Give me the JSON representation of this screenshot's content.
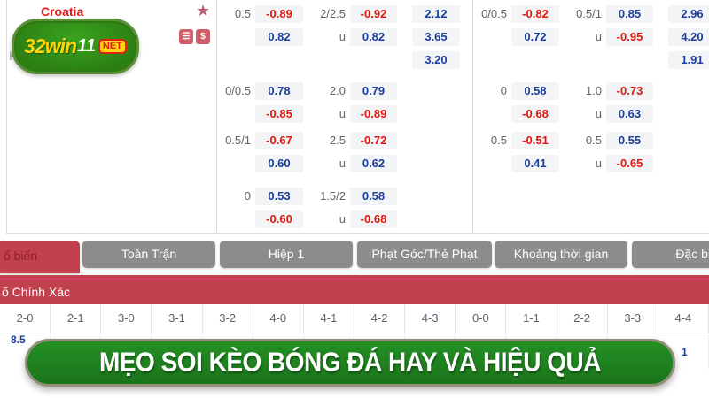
{
  "labels": {
    "u": "u"
  },
  "team_panel": {
    "name": "Croatia",
    "partial_text": "H",
    "logo": {
      "p1": "32win",
      "p2": "11",
      "badge": "NET"
    },
    "icons": {
      "stack": "☰",
      "dollar": "$"
    }
  },
  "odds": {
    "left": {
      "groups": [
        {
          "hdp": "0.5",
          "hdp_home": "-0.89",
          "hdp_away": "0.82",
          "ou": "2/2.5",
          "over": "-0.92",
          "under": "0.82",
          "x12": [
            "2.12",
            "3.65",
            "3.20"
          ]
        },
        {
          "hdp": "0/0.5",
          "hdp_home": "0.78",
          "hdp_away": "-0.85",
          "ou": "2.0",
          "over": "0.79",
          "under": "-0.89"
        },
        {
          "hdp": "0.5/1",
          "hdp_home": "-0.67",
          "hdp_away": "0.60",
          "ou": "2.5",
          "over": "-0.72",
          "under": "0.62"
        },
        {
          "hdp": "0",
          "hdp_home": "0.53",
          "hdp_away": "-0.60",
          "ou": "1.5/2",
          "over": "0.58",
          "under": "-0.68"
        }
      ]
    },
    "right": {
      "groups": [
        {
          "hdp": "0/0.5",
          "hdp_home": "-0.82",
          "hdp_away": "0.72",
          "ou": "0.5/1",
          "over": "0.85",
          "under": "-0.95",
          "x12": [
            "2.96",
            "4.20",
            "1.91"
          ]
        },
        {
          "hdp": "0",
          "hdp_home": "0.58",
          "hdp_away": "-0.68",
          "ou": "1.0",
          "over": "-0.73",
          "under": "0.63"
        },
        {
          "hdp": "0.5",
          "hdp_home": "-0.51",
          "hdp_away": "0.41",
          "ou": "0.5",
          "over": "0.55",
          "under": "-0.65"
        }
      ]
    }
  },
  "tabs": [
    {
      "label": "ổ biến",
      "active": true
    },
    {
      "label": "Toàn Trận"
    },
    {
      "label": "Hiệp 1"
    },
    {
      "label": "Phạt Góc/Thẻ Phạt"
    },
    {
      "label": "Khoảng thời gian"
    },
    {
      "label": "Đặc biệt"
    }
  ],
  "correct_score": {
    "title": "ố Chính Xác",
    "scores": [
      "2-0",
      "2-1",
      "3-0",
      "3-1",
      "3-2",
      "4-0",
      "4-1",
      "4-2",
      "4-3",
      "0-0",
      "1-1",
      "2-2",
      "3-3",
      "4-4"
    ],
    "partial_odd_left": "8.5",
    "partial_odd_right": "1"
  },
  "banner": {
    "text": "MẸO SOI KÈO BÓNG ĐÁ HAY VÀ HIỆU QUẢ"
  },
  "colors": {
    "accent_red": "#c2414f",
    "odd_negative": "#e0170e",
    "odd_positive": "#1a3e9c",
    "banner_green": "#1e7b1e",
    "logo_green": "#2f8f1c"
  }
}
